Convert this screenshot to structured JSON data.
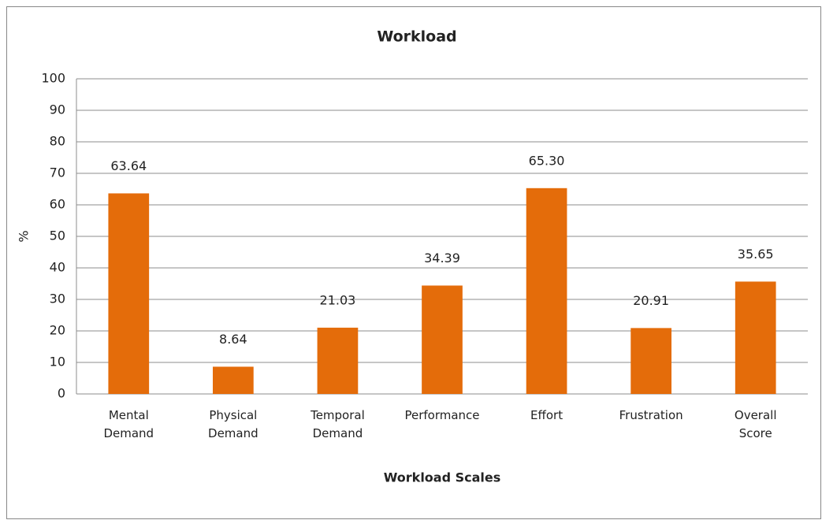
{
  "chart_data": {
    "type": "bar",
    "title": "Workload",
    "x_label": "Workload Scales",
    "y_label": "%",
    "categories": [
      "Mental Demand",
      "Physical Demand",
      "Temporal Demand",
      "Performance",
      "Effort",
      "Frustration",
      "Overall Score"
    ],
    "values": [
      63.64,
      8.64,
      21.03,
      34.39,
      65.3,
      20.91,
      35.65
    ],
    "value_labels": [
      "63.64",
      "8.64",
      "21.03",
      "34.39",
      "65.30",
      "20.91",
      "35.65"
    ],
    "color": "#e46c0a",
    "ylim": [
      0,
      100
    ],
    "yticks": [
      0,
      10,
      20,
      30,
      40,
      50,
      60,
      70,
      80,
      90,
      100
    ],
    "grid": true
  }
}
